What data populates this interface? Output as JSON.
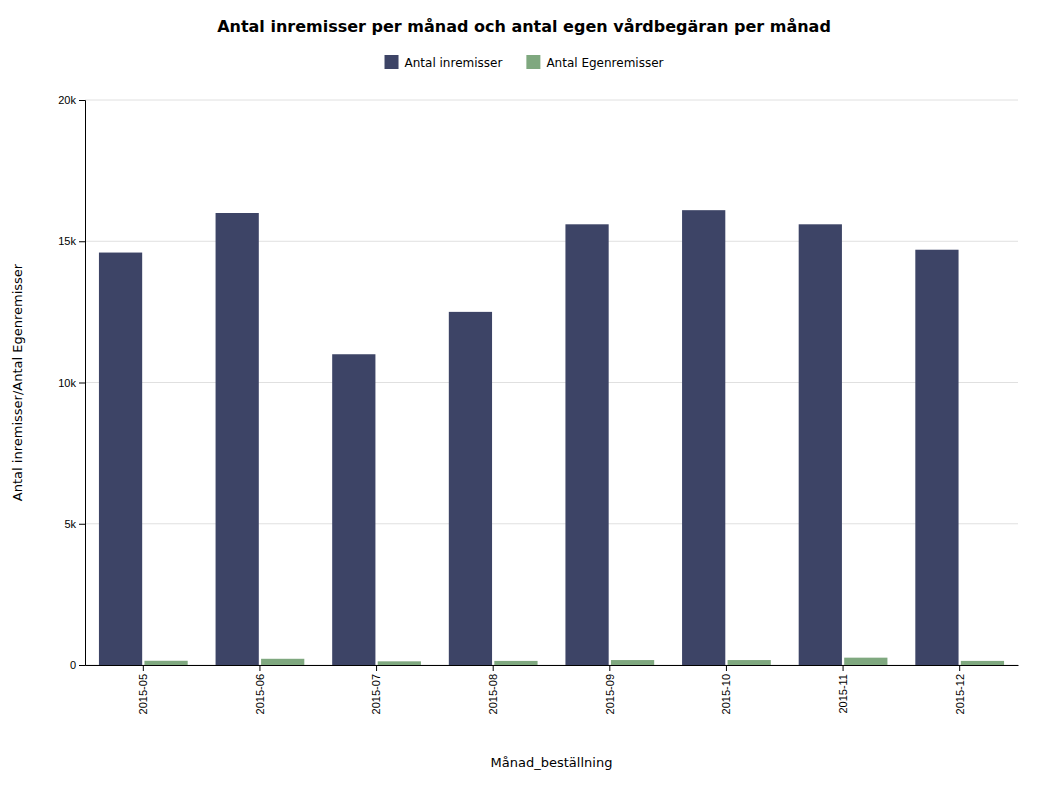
{
  "chart_data": {
    "type": "bar",
    "title": "Antal inremisser per månad och antal egen vårdbegäran per månad",
    "x_label": "Månad_beställning",
    "y_label": "Antal inremisser/Antal Egenremisser",
    "categories": [
      "2015-05",
      "2015-06",
      "2015-07",
      "2015-08",
      "2015-09",
      "2015-10",
      "2015-11",
      "2015-12"
    ],
    "series": [
      {
        "name": "Antal inremisser",
        "color": "#3d4466",
        "values": [
          14600,
          16000,
          11000,
          12500,
          15600,
          16100,
          15600,
          14700
        ]
      },
      {
        "name": "Antal Egenremisser",
        "color": "#7fa87f",
        "values": [
          150,
          220,
          130,
          145,
          175,
          175,
          260,
          145
        ]
      }
    ],
    "ylim": [
      0,
      20000
    ],
    "yticks": [
      0,
      {
        "value": 5000,
        "label": "5k"
      },
      {
        "value": 10000,
        "label": "10k"
      },
      {
        "value": 15000,
        "label": "15k"
      },
      {
        "value": 20000,
        "label": "20k"
      }
    ],
    "grid": true,
    "legend": "top"
  }
}
